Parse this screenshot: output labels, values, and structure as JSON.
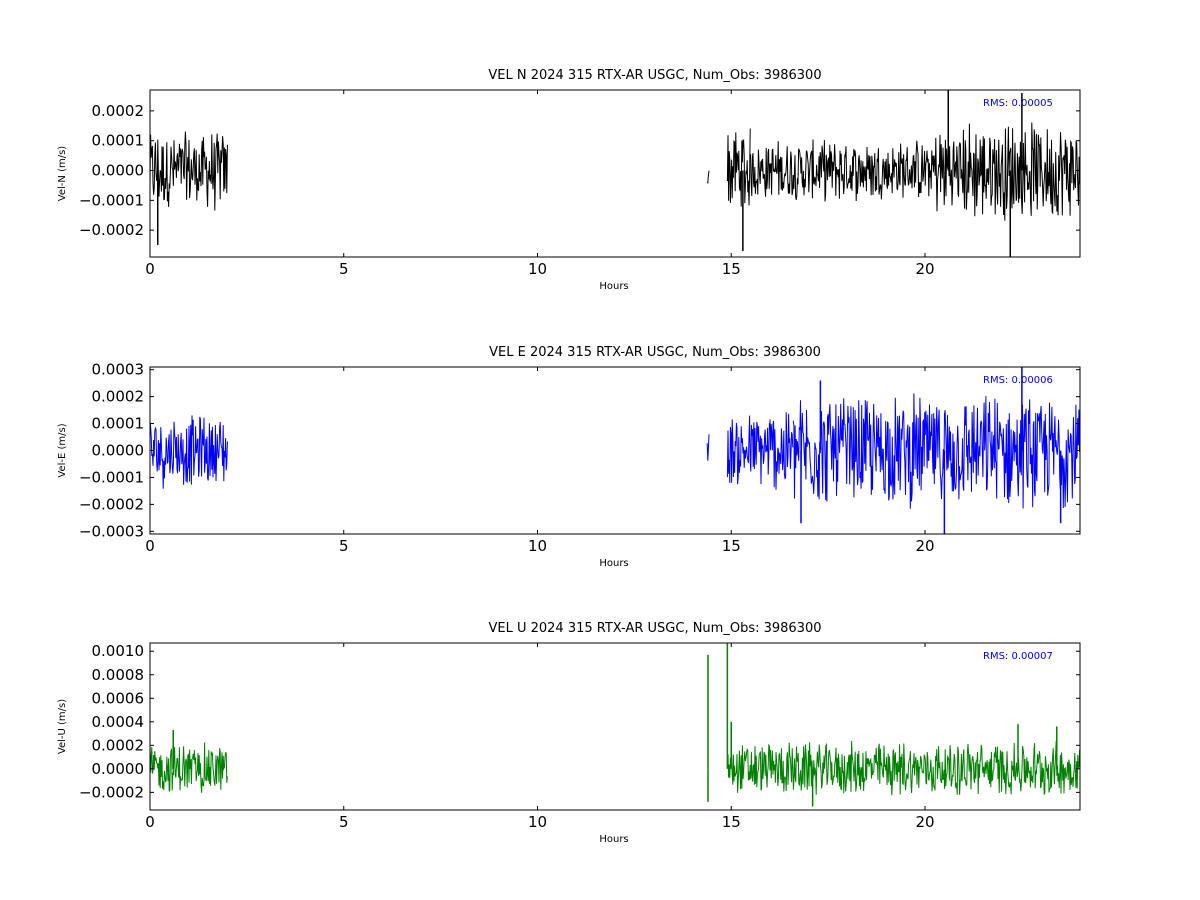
{
  "chart_data": [
    {
      "type": "line",
      "title": "VEL N 2024 315 RTX-AR  USGC, Num_Obs: 3986300",
      "xlabel": "Hours",
      "ylabel": "Vel-N (m/s)",
      "xlim": [
        0,
        24
      ],
      "ylim": [
        -0.00029,
        0.00027
      ],
      "x_ticks": [
        0,
        5,
        10,
        15,
        20
      ],
      "x_tick_labels": [
        "0",
        "5",
        "10",
        "15",
        "20"
      ],
      "y_ticks": [
        -0.0002,
        -0.0001,
        0,
        0.0001,
        0.0002
      ],
      "y_tick_labels": [
        "−0.0002",
        "−0.0001",
        "0.0000",
        "0.0001",
        "0.0002"
      ],
      "grid": false,
      "series_color": "#000000",
      "annotation": {
        "text": "RMS:  0.00005",
        "color": "#0000ff"
      },
      "segments": [
        {
          "x_start": 0.0,
          "x_end": 2.0,
          "amplitude": 0.000145
        },
        {
          "x_start": 14.38,
          "x_end": 14.43,
          "amplitude": 8e-05
        },
        {
          "x_start": 14.9,
          "x_end": 15.5,
          "amplitude": 0.000175
        },
        {
          "x_start": 15.5,
          "x_end": 20.2,
          "amplitude": 0.00011
        },
        {
          "x_start": 20.2,
          "x_end": 24.0,
          "amplitude": 0.00018
        }
      ],
      "spikes": [
        {
          "x": 20.6,
          "y": 0.00027
        },
        {
          "x": 22.2,
          "y": -0.00029
        },
        {
          "x": 22.5,
          "y": 0.00026
        },
        {
          "x": 0.2,
          "y": -0.00025
        },
        {
          "x": 15.3,
          "y": -0.00027
        }
      ]
    },
    {
      "type": "line",
      "title": "VEL E 2024 315 RTX-AR  USGC, Num_Obs: 3986300",
      "xlabel": "Hours",
      "ylabel": "Vel-E (m/s)",
      "xlim": [
        0,
        24
      ],
      "ylim": [
        -0.00031,
        0.00031
      ],
      "x_ticks": [
        0,
        5,
        10,
        15,
        20
      ],
      "x_tick_labels": [
        "0",
        "5",
        "10",
        "15",
        "20"
      ],
      "y_ticks": [
        -0.0003,
        -0.0002,
        -0.0001,
        0,
        0.0001,
        0.0002,
        0.0003
      ],
      "y_tick_labels": [
        "−0.0003",
        "−0.0002",
        "−0.0001",
        "0.0000",
        "0.0001",
        "0.0002",
        "0.0003"
      ],
      "grid": false,
      "series_color": "#0000ff",
      "annotation": {
        "text": "RMS:  0.00006",
        "color": "#0000ff"
      },
      "segments": [
        {
          "x_start": 0.0,
          "x_end": 2.0,
          "amplitude": 0.000145
        },
        {
          "x_start": 14.38,
          "x_end": 14.43,
          "amplitude": 0.0001
        },
        {
          "x_start": 14.9,
          "x_end": 16.0,
          "amplitude": 0.00015
        },
        {
          "x_start": 16.0,
          "x_end": 16.6,
          "amplitude": 0.00019
        },
        {
          "x_start": 16.6,
          "x_end": 24.0,
          "amplitude": 0.00022
        }
      ],
      "spikes": [
        {
          "x": 22.5,
          "y": 0.00031
        },
        {
          "x": 20.5,
          "y": -0.00031
        },
        {
          "x": 17.3,
          "y": 0.00026
        },
        {
          "x": 16.8,
          "y": -0.00027
        },
        {
          "x": 23.5,
          "y": -0.00027
        }
      ]
    },
    {
      "type": "line",
      "title": "VEL U 2024 315 RTX-AR  USGC, Num_Obs: 3986300",
      "xlabel": "Hours",
      "ylabel": "Vel-U (m/s)",
      "xlim": [
        0,
        24
      ],
      "ylim": [
        -0.00035,
        0.00107
      ],
      "x_ticks": [
        0,
        5,
        10,
        15,
        20
      ],
      "x_tick_labels": [
        "0",
        "5",
        "10",
        "15",
        "20"
      ],
      "y_ticks": [
        -0.0002,
        0,
        0.0002,
        0.0004,
        0.0006,
        0.0008,
        0.001
      ],
      "y_tick_labels": [
        "−0.0002",
        "0.0000",
        "0.0002",
        "0.0004",
        "0.0006",
        "0.0008",
        "0.0010"
      ],
      "grid": false,
      "series_color": "#008000",
      "annotation": {
        "text": "RMS:  0.00007",
        "color": "#0000ff"
      },
      "segments": [
        {
          "x_start": 0.0,
          "x_end": 2.0,
          "amplitude": 0.00024
        },
        {
          "x_start": 14.9,
          "x_end": 24.0,
          "amplitude": 0.00025
        }
      ],
      "spikes": [
        {
          "x": 14.4,
          "y": 0.00097
        },
        {
          "x": 14.4,
          "y": -0.00028
        },
        {
          "x": 14.9,
          "y": 0.00107
        },
        {
          "x": 15.0,
          "y": 0.0004
        },
        {
          "x": 22.4,
          "y": 0.00038
        },
        {
          "x": 23.4,
          "y": 0.00036
        },
        {
          "x": 0.6,
          "y": 0.00033
        },
        {
          "x": 17.1,
          "y": -0.00032
        }
      ]
    }
  ]
}
